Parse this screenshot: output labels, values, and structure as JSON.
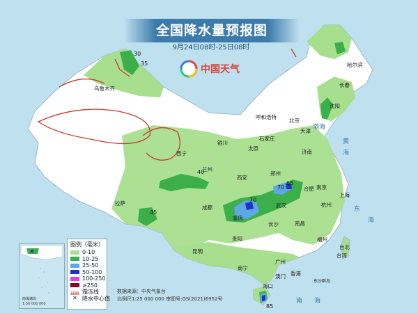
{
  "title": "全国降水量预报图",
  "subtitle": "9月24日08时-25日08时",
  "brand": {
    "name": "中国天气"
  },
  "legend": {
    "title": "图例（毫米）",
    "items": [
      {
        "label": "0-10",
        "color": "#a8df8e"
      },
      {
        "label": "10-25",
        "color": "#3cae4a"
      },
      {
        "label": "25-50",
        "color": "#5ea8e6"
      },
      {
        "label": "50-100",
        "color": "#1d33c7"
      },
      {
        "label": "100-250",
        "color": "#e83ee0"
      },
      {
        "label": "≥250",
        "color": "#7a0f2c"
      }
    ],
    "frost_label": "霜冻线",
    "center_label": "降水中心值"
  },
  "footer": {
    "source": "数据来源：中央气象台",
    "scale_line": "比例尺1:25 000 000   审图号:GS(2021)6952号"
  },
  "inset": {
    "label1": "南海诸岛",
    "label2": "1:50 000 000"
  },
  "rain_centers": [
    {
      "value": "30"
    },
    {
      "value": "35"
    },
    {
      "value": "40"
    },
    {
      "value": "70"
    },
    {
      "value": "65"
    },
    {
      "value": "70"
    },
    {
      "value": "45"
    },
    {
      "value": "85"
    }
  ],
  "cities": {
    "harbin": "哈尔滨",
    "changchun": "长春",
    "shenyang": "沈阳",
    "hohhot": "呼和浩特",
    "beijing": "北京",
    "tianjin": "天津",
    "shijiazhuang": "石家庄",
    "taiyuan": "太原",
    "jinan": "济南",
    "yinchuan": "银川",
    "xining": "西宁",
    "lanzhou": "兰州",
    "zhengzhou": "郑州",
    "xian": "西安",
    "hefei": "合肥",
    "nanjing": "南京",
    "shanghai": "上海",
    "wuhan": "武汉",
    "hangzhou": "杭州",
    "chengdu": "成都",
    "chongqing": "重庆",
    "changsha": "长沙",
    "nanchang": "南昌",
    "fuzhou": "福州",
    "taipei": "台北",
    "taiwan": "台湾",
    "guiyang": "贵阳",
    "kunming": "昆明",
    "guangzhou": "广州",
    "hongkong": "香港",
    "macao": "澳门",
    "nanning": "南宁",
    "haikou": "海口",
    "lhasa": "拉萨",
    "urumqi": "乌鲁木齐",
    "dongsha": "东沙群岛"
  },
  "seas": {
    "yellow": "黄",
    "yellow2": "海",
    "east1": "东",
    "east2": "海",
    "south1": "南",
    "south2": "海",
    "bohai": "渤海"
  }
}
